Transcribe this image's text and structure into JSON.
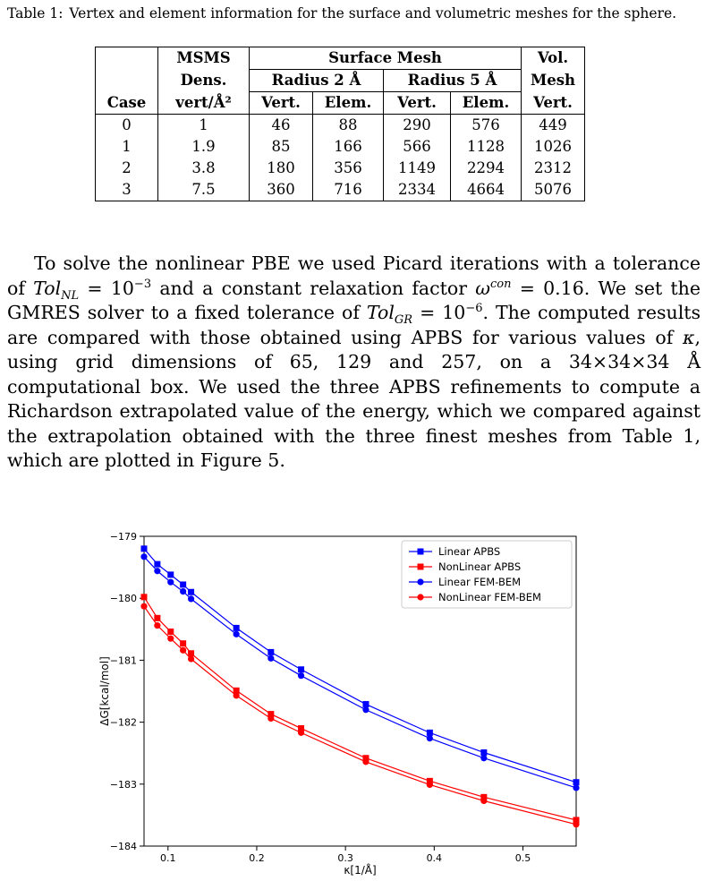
{
  "caption": {
    "label": "Table 1:",
    "text": "Vertex and element information for the surface and volumetric meshes for the sphere."
  },
  "table": {
    "header": {
      "msms": "MSMS",
      "dens": "Dens.",
      "vert_unit": "vert/Å²",
      "surface_mesh": "Surface Mesh",
      "radius2": "Radius 2 Å",
      "radius5": "Radius 5 Å",
      "vert": "Vert.",
      "elem": "Elem.",
      "vol1": "Vol.",
      "vol2": "Mesh",
      "case": "Case"
    },
    "rows": [
      {
        "case": "0",
        "dens": "1",
        "v2": "46",
        "e2": "88",
        "v5": "290",
        "e5": "576",
        "vol": "449"
      },
      {
        "case": "1",
        "dens": "1.9",
        "v2": "85",
        "e2": "166",
        "v5": "566",
        "e5": "1128",
        "vol": "1026"
      },
      {
        "case": "2",
        "dens": "3.8",
        "v2": "180",
        "e2": "356",
        "v5": "1149",
        "e5": "2294",
        "vol": "2312"
      },
      {
        "case": "3",
        "dens": "7.5",
        "v2": "360",
        "e2": "716",
        "v5": "2334",
        "e5": "4664",
        "vol": "5076"
      }
    ]
  },
  "paragraph": {
    "s1": "To solve the nonlinear PBE we used Picard iterations with a tolerance of ",
    "tol_nl": "Tol",
    "tol_nl_sub": "NL",
    "s2": " = 10",
    "exp1": "−3",
    "s3": " and a constant relaxation factor ",
    "omega": "ω",
    "omega_sup": "con",
    "s4": " = 0.16. We set the GMRES solver to a fixed tolerance of ",
    "tol_gr": "Tol",
    "tol_gr_sub": "GR",
    "s5": " = 10",
    "exp2": "−6",
    "s6": ". The computed results are compared with those obtained using APBS for various values of ",
    "kappa": "κ",
    "s7": ", using grid dimensions of 65, 129 and 257, on a 34×34×34 Å computational box. We used the three APBS refinements to compute a Richardson extrapolated value of the energy, which we compared against the extrapolation obtained with the three finest meshes from Table 1, which are plotted in Figure 5."
  },
  "chart_data": {
    "type": "line",
    "xlabel": "κ[1/Å]",
    "ylabel": "ΔG[kcal/mol]",
    "xlim": [
      0.073,
      0.56
    ],
    "ylim": [
      -184,
      -179
    ],
    "xticks": [
      0.1,
      0.2,
      0.3,
      0.4,
      0.5
    ],
    "xtick_labels": [
      "0.1",
      "0.2",
      "0.3",
      "0.4",
      "0.5"
    ],
    "yticks": [
      -184,
      -183,
      -182,
      -181,
      -180,
      -179
    ],
    "ytick_labels": [
      "−184",
      "−183",
      "−182",
      "−181",
      "−180",
      "−179"
    ],
    "grid": false,
    "legend_position": "top-right",
    "x": [
      0.073,
      0.088,
      0.103,
      0.117,
      0.126,
      0.177,
      0.216,
      0.25,
      0.323,
      0.395,
      0.456,
      0.56
    ],
    "series": [
      {
        "name": "Linear APBS",
        "color": "#0000ff",
        "marker": "square",
        "values": [
          -179.2,
          -179.45,
          -179.62,
          -179.78,
          -179.9,
          -180.48,
          -180.87,
          -181.15,
          -181.71,
          -182.17,
          -182.49,
          -182.97
        ]
      },
      {
        "name": "NonLinear APBS",
        "color": "#ff0000",
        "marker": "square",
        "values": [
          -179.98,
          -180.32,
          -180.54,
          -180.73,
          -180.89,
          -181.49,
          -181.87,
          -182.1,
          -182.58,
          -182.95,
          -183.21,
          -183.58
        ]
      },
      {
        "name": "Linear FEM-BEM",
        "color": "#0000ff",
        "marker": "circle",
        "values": [
          -179.33,
          -179.56,
          -179.74,
          -179.89,
          -180.01,
          -180.58,
          -180.97,
          -181.25,
          -181.8,
          -182.26,
          -182.58,
          -183.06
        ]
      },
      {
        "name": "NonLinear FEM-BEM",
        "color": "#ff0000",
        "marker": "circle",
        "values": [
          -180.13,
          -180.44,
          -180.65,
          -180.84,
          -180.98,
          -181.57,
          -181.94,
          -182.17,
          -182.64,
          -183.01,
          -183.27,
          -183.65
        ]
      }
    ]
  }
}
